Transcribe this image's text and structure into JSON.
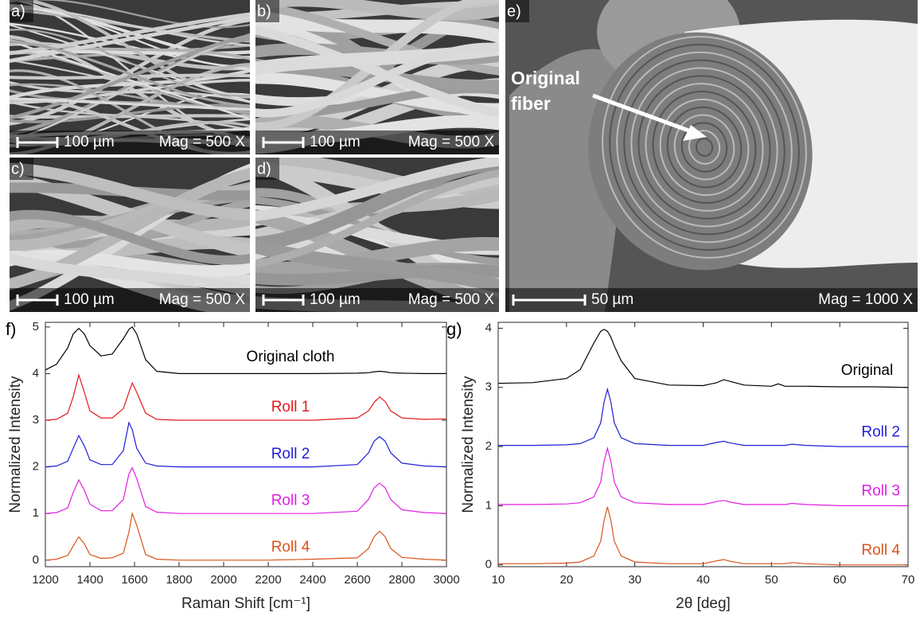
{
  "figure": {
    "panels": [
      {
        "label": "a)",
        "scale": "100 µm",
        "mag": "Mag = 500 X"
      },
      {
        "label": "b)",
        "scale": "100 µm",
        "mag": "Mag = 500 X"
      },
      {
        "label": "c)",
        "scale": "100 µm",
        "mag": "Mag = 500 X"
      },
      {
        "label": "d)",
        "scale": "100 µm",
        "mag": "Mag = 500 X"
      },
      {
        "label": "e)",
        "scale": "50 µm",
        "mag": "Mag = 1000 X",
        "annotation": [
          "Original",
          "fiber"
        ]
      }
    ]
  },
  "chart_data": [
    {
      "type": "line",
      "panel_label": "f)",
      "xlabel": "Raman Shift [cm⁻¹]",
      "ylabel": "Normalized Intensity",
      "xlim": [
        1200,
        3000
      ],
      "xticks": [
        1200,
        1400,
        1600,
        1800,
        2000,
        2200,
        2400,
        2600,
        2800,
        3000
      ],
      "ylim": [
        -0.14,
        5.1
      ],
      "yticks": [
        0,
        1,
        2,
        3,
        4,
        5
      ],
      "x": [
        1200,
        1250,
        1300,
        1325,
        1350,
        1375,
        1400,
        1450,
        1500,
        1550,
        1575,
        1590,
        1610,
        1650,
        1700,
        1800,
        2000,
        2200,
        2400,
        2600,
        2650,
        2675,
        2700,
        2725,
        2750,
        2800,
        2900,
        3000
      ],
      "series": [
        {
          "name": "Original cloth",
          "color": "#000000",
          "values": [
            4.08,
            4.2,
            4.55,
            4.85,
            4.97,
            4.85,
            4.6,
            4.38,
            4.42,
            4.75,
            4.95,
            5.0,
            4.85,
            4.3,
            4.05,
            4.0,
            4.0,
            4.0,
            4.0,
            4.01,
            4.02,
            4.04,
            4.05,
            4.04,
            4.02,
            4.01,
            4.0,
            4.0
          ]
        },
        {
          "name": "Roll 1",
          "color": "#e41a1c",
          "values": [
            3.0,
            3.02,
            3.15,
            3.5,
            3.97,
            3.6,
            3.2,
            3.05,
            3.05,
            3.25,
            3.6,
            3.8,
            3.6,
            3.15,
            3.02,
            3.0,
            3.0,
            3.0,
            3.0,
            3.05,
            3.2,
            3.38,
            3.5,
            3.4,
            3.2,
            3.05,
            3.02,
            3.03
          ]
        },
        {
          "name": "Roll 2",
          "color": "#1f1fd6",
          "values": [
            2.0,
            2.02,
            2.12,
            2.4,
            2.67,
            2.45,
            2.15,
            2.05,
            2.05,
            2.35,
            2.95,
            2.8,
            2.4,
            2.08,
            2.02,
            2.0,
            2.0,
            2.0,
            2.0,
            2.05,
            2.3,
            2.55,
            2.65,
            2.55,
            2.3,
            2.08,
            2.02,
            2.0
          ]
        },
        {
          "name": "Roll 3",
          "color": "#e01ee0",
          "values": [
            1.0,
            1.02,
            1.12,
            1.45,
            1.72,
            1.5,
            1.2,
            1.06,
            1.06,
            1.3,
            1.85,
            1.98,
            1.75,
            1.15,
            1.03,
            1.0,
            1.0,
            1.0,
            1.0,
            1.05,
            1.3,
            1.55,
            1.65,
            1.55,
            1.3,
            1.08,
            1.02,
            1.0
          ]
        },
        {
          "name": "Roll 4",
          "color": "#d95319",
          "values": [
            0.0,
            0.02,
            0.1,
            0.3,
            0.5,
            0.35,
            0.12,
            0.04,
            0.05,
            0.15,
            0.6,
            1.0,
            0.75,
            0.12,
            0.02,
            0.0,
            0.0,
            0.0,
            0.02,
            0.05,
            0.25,
            0.5,
            0.62,
            0.5,
            0.25,
            0.06,
            0.02,
            0.0
          ]
        }
      ]
    },
    {
      "type": "line",
      "panel_label": "g)",
      "xlabel": "2θ [deg]",
      "ylabel": "Normalized Intensity",
      "xlim": [
        10,
        70
      ],
      "xticks": [
        10,
        20,
        30,
        40,
        50,
        60,
        70
      ],
      "ylim": [
        -0.03,
        4.1
      ],
      "yticks": [
        0,
        1,
        2,
        3,
        4
      ],
      "x": [
        10,
        15,
        20,
        22,
        24,
        25,
        25.5,
        26,
        26.5,
        27,
        28,
        30,
        35,
        40,
        42,
        43,
        44,
        46,
        50,
        51,
        52,
        53,
        55,
        60,
        65,
        70
      ],
      "series": [
        {
          "name": "Original",
          "color": "#000000",
          "values": [
            3.07,
            3.08,
            3.15,
            3.3,
            3.75,
            3.95,
            3.98,
            3.95,
            3.85,
            3.7,
            3.45,
            3.15,
            3.04,
            3.03,
            3.08,
            3.13,
            3.1,
            3.04,
            3.02,
            3.06,
            3.02,
            3.02,
            3.02,
            3.01,
            3.01,
            3.0
          ]
        },
        {
          "name": "Roll 2",
          "color": "#1f1fd6",
          "values": [
            2.02,
            2.02,
            2.03,
            2.05,
            2.15,
            2.4,
            2.75,
            2.97,
            2.75,
            2.4,
            2.15,
            2.05,
            2.02,
            2.02,
            2.07,
            2.09,
            2.06,
            2.02,
            2.02,
            2.02,
            2.02,
            2.04,
            2.02,
            2.0,
            2.0,
            2.0
          ]
        },
        {
          "name": "Roll 3",
          "color": "#e01ee0",
          "values": [
            1.02,
            1.02,
            1.03,
            1.05,
            1.15,
            1.4,
            1.75,
            1.97,
            1.75,
            1.4,
            1.15,
            1.05,
            1.02,
            1.02,
            1.07,
            1.09,
            1.06,
            1.02,
            1.02,
            1.02,
            1.02,
            1.04,
            1.02,
            1.0,
            1.0,
            1.0
          ]
        },
        {
          "name": "Roll 4",
          "color": "#d95319",
          "values": [
            0.02,
            0.02,
            0.03,
            0.05,
            0.15,
            0.4,
            0.75,
            0.98,
            0.75,
            0.4,
            0.15,
            0.05,
            0.02,
            0.02,
            0.07,
            0.09,
            0.06,
            0.02,
            0.02,
            0.02,
            0.02,
            0.04,
            0.02,
            0.0,
            0.0,
            0.0
          ]
        }
      ]
    }
  ]
}
